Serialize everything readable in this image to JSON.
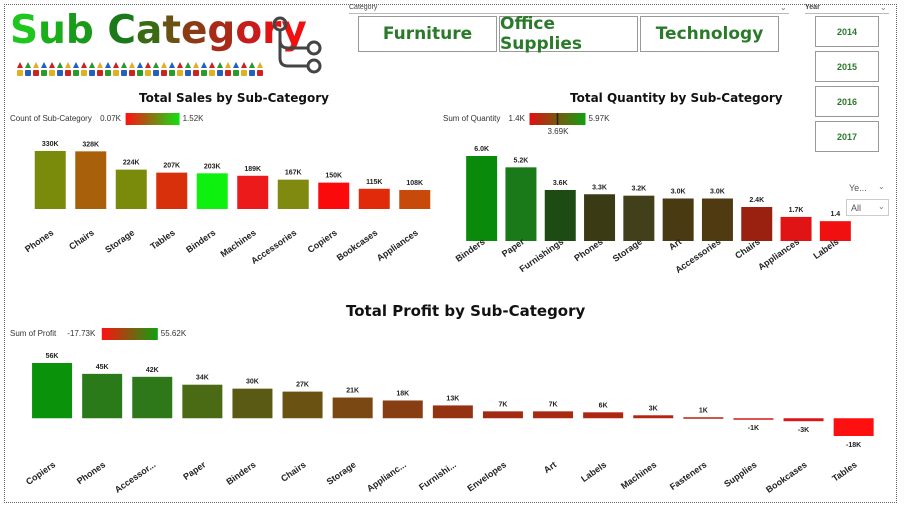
{
  "header": {
    "title_letters": [
      {
        "ch": "S",
        "color": "#1ec61e"
      },
      {
        "ch": "u",
        "color": "#1aae1a"
      },
      {
        "ch": "b",
        "color": "#1a9a1a"
      },
      {
        "ch": " ",
        "color": "#ffffff"
      },
      {
        "ch": "C",
        "color": "#1a7a1a"
      },
      {
        "ch": "a",
        "color": "#3a6a14"
      },
      {
        "ch": "t",
        "color": "#6a5214"
      },
      {
        "ch": "e",
        "color": "#8a3a14"
      },
      {
        "ch": "g",
        "color": "#a82a18"
      },
      {
        "ch": "o",
        "color": "#c61c1c"
      },
      {
        "ch": "r",
        "color": "#e01414"
      },
      {
        "ch": "y",
        "color": "#f01010"
      }
    ],
    "icon": "tree-structure-icon",
    "deco_colors": [
      "#d02020",
      "#2a9a2a",
      "#e0b020",
      "#2060c0"
    ]
  },
  "filters": {
    "category": {
      "label": "Category",
      "options": [
        "Furniture",
        "Office Supplies",
        "Technology"
      ],
      "text_color": "#2b7a2b"
    },
    "year": {
      "label": "Year",
      "options": [
        "2014",
        "2015",
        "2016",
        "2017"
      ]
    },
    "side_dropdown": {
      "label": "Ye...",
      "value": "All"
    }
  },
  "chart_data": [
    {
      "type": "bar",
      "title": "Total Sales by Sub-Category",
      "legend": {
        "label": "Count of Sub-Category",
        "min": "0.07K",
        "max": "1.52K"
      },
      "categories": [
        "Phones",
        "Chairs",
        "Storage",
        "Tables",
        "Binders",
        "Machines",
        "Accessories",
        "Copiers",
        "Bookcases",
        "Appliances"
      ],
      "values": [
        330,
        328,
        224,
        207,
        203,
        189,
        167,
        150,
        115,
        108
      ],
      "labels": [
        "330K",
        "328K",
        "224K",
        "207K",
        "203K",
        "189K",
        "167K",
        "150K",
        "115K",
        "108K"
      ],
      "colors": [
        "#7a8a0a",
        "#a8600a",
        "#7a8a0a",
        "#d8300a",
        "#0ef00e",
        "#ec1a1a",
        "#808a10",
        "#fa0a0a",
        "#e02a0a",
        "#c84a0a"
      ],
      "unit": "K"
    },
    {
      "type": "bar",
      "title": "Total Quantity by Sub-Category",
      "legend": {
        "label": "Sum of Quantity",
        "min": "1.4K",
        "max": "5.97K",
        "mid": "3.69K"
      },
      "categories": [
        "Binders",
        "Paper",
        "Furnishings",
        "Phones",
        "Storage",
        "Art",
        "Accessories",
        "Chairs",
        "Appliances",
        "Labels"
      ],
      "values": [
        6.0,
        5.2,
        3.6,
        3.3,
        3.2,
        3.0,
        3.0,
        2.4,
        1.7,
        1.4
      ],
      "labels": [
        "6.0K",
        "5.2K",
        "3.6K",
        "3.3K",
        "3.2K",
        "3.0K",
        "3.0K",
        "2.4K",
        "1.7K",
        "1.4"
      ],
      "colors": [
        "#0a8a0a",
        "#1a7a1a",
        "#1e4a14",
        "#3a3a14",
        "#42401a",
        "#4a3a12",
        "#503a12",
        "#9a2010",
        "#e01414",
        "#f01010"
      ],
      "unit": "K"
    },
    {
      "type": "bar",
      "title": "Total Profit by Sub-Category",
      "legend": {
        "label": "Sum of Profit",
        "min": "-17.73K",
        "max": "55.62K"
      },
      "categories": [
        "Copiers",
        "Phones",
        "Accessor...",
        "Paper",
        "Binders",
        "Chairs",
        "Storage",
        "Applianc...",
        "Furnishi...",
        "Envelopes",
        "Art",
        "Labels",
        "Machines",
        "Fasteners",
        "Supplies",
        "Bookcases",
        "Tables"
      ],
      "values": [
        56,
        45,
        42,
        34,
        30,
        27,
        21,
        18,
        13,
        7,
        7,
        6,
        3,
        1,
        -1,
        -3,
        -18
      ],
      "labels": [
        "56K",
        "45K",
        "42K",
        "34K",
        "30K",
        "27K",
        "21K",
        "18K",
        "13K",
        "7K",
        "7K",
        "6K",
        "3K",
        "1K",
        "-1K",
        "-3K",
        "-18K"
      ],
      "colors": [
        "#0a920a",
        "#2a7a1a",
        "#2e781a",
        "#4a6a14",
        "#5a5a14",
        "#6a5212",
        "#7a4812",
        "#863e12",
        "#943212",
        "#a22a12",
        "#a82a12",
        "#ac2812",
        "#b02612",
        "#b42412",
        "#d01a1a",
        "#d81818",
        "#ff1010"
      ],
      "unit": "K"
    }
  ]
}
